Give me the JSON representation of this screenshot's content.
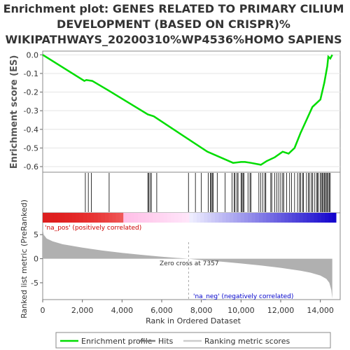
{
  "title_lines": [
    "Enrichment plot: GENES RELATED TO PRIMARY CILIUM",
    "DEVELOPMENT (BASED ON CRISPR)%",
    "WIKIPATHWAYS_20200310%WP4536%HOMO SAPIENS"
  ],
  "colors": {
    "es_line": "#00dd00",
    "hits": "#000000",
    "metric_fill": "#b0b0b0",
    "pos_color": "#cc0000",
    "neg_color": "#0000cc"
  },
  "chart_data": [
    {
      "type": "line",
      "panel": "enrichment-score",
      "ylabel": "Enrichment score (ES)",
      "ylim": [
        -0.63,
        0.02
      ],
      "xlim": [
        0,
        15000
      ],
      "yticks": [
        "0.0",
        "-0.1",
        "-0.2",
        "-0.3",
        "-0.4",
        "-0.5",
        "-0.6"
      ],
      "ytick_values": [
        0.0,
        -0.1,
        -0.2,
        -0.3,
        -0.4,
        -0.5,
        -0.6
      ],
      "grid": true,
      "series": [
        {
          "x": [
            0,
            2100,
            2200,
            2500,
            3300,
            5300,
            5600,
            8300,
            9600,
            10000,
            10200,
            10500,
            11000,
            11300,
            11700,
            12100,
            12400,
            12700,
            13000,
            13300,
            13600,
            14000,
            14200,
            14350,
            14400,
            14500,
            14600
          ],
          "y": [
            0.0,
            -0.14,
            -0.135,
            -0.14,
            -0.19,
            -0.32,
            -0.33,
            -0.52,
            -0.58,
            -0.575,
            -0.575,
            -0.58,
            -0.59,
            -0.57,
            -0.55,
            -0.52,
            -0.53,
            -0.5,
            -0.42,
            -0.35,
            -0.28,
            -0.24,
            -0.15,
            -0.06,
            -0.01,
            -0.02,
            0.0
          ]
        }
      ]
    },
    {
      "type": "bar",
      "panel": "hits",
      "xlim": [
        0,
        15000
      ],
      "hits": [
        2150,
        2300,
        2450,
        3350,
        5300,
        5350,
        5420,
        5480,
        5750,
        7350,
        7700,
        8000,
        8350,
        8450,
        8500,
        8550,
        8600,
        8800,
        9200,
        9550,
        9650,
        9700,
        9800,
        9850,
        10000,
        10050,
        10100,
        10150,
        10350,
        10450,
        10500,
        10900,
        11000,
        11100,
        11200,
        11250,
        11500,
        11550,
        11700,
        11800,
        11900,
        12000,
        12100,
        12150,
        12300,
        12450,
        12550,
        12700,
        12850,
        12950,
        13000,
        13100,
        13150,
        13300,
        13400,
        13450,
        13550,
        13600,
        13700,
        13800,
        13850,
        13900,
        14000,
        14050,
        14100,
        14150,
        14200,
        14250,
        14300,
        14350,
        14400,
        14450,
        14500
      ]
    },
    {
      "type": "area",
      "panel": "ranked-metric",
      "ylabel": "Ranked list metric (PreRanked)",
      "xlabel": "Rank in Ordered Dataset",
      "xlim": [
        0,
        15000
      ],
      "ylim": [
        -8.5,
        7.5
      ],
      "xticks": [
        "0",
        "2,000",
        "4,000",
        "6,000",
        "8,000",
        "10,000",
        "12,000",
        "14,000"
      ],
      "xtick_values": [
        0,
        2000,
        4000,
        6000,
        8000,
        10000,
        12000,
        14000
      ],
      "yticks": [
        "5",
        "0",
        "-5"
      ],
      "ytick_values": [
        5,
        0,
        -5
      ],
      "x": [
        0,
        50,
        200,
        500,
        1000,
        2000,
        3000,
        4000,
        5000,
        6000,
        7000,
        7357,
        8000,
        9000,
        10000,
        11000,
        12000,
        13000,
        13500,
        14000,
        14300,
        14450,
        14550,
        14600
      ],
      "y": [
        6.2,
        5.0,
        4.2,
        3.6,
        3.0,
        2.3,
        1.7,
        1.2,
        0.8,
        0.4,
        0.1,
        0.0,
        -0.3,
        -0.6,
        -1.0,
        -1.4,
        -1.9,
        -2.5,
        -2.9,
        -3.5,
        -4.2,
        -5.0,
        -6.5,
        -8.3
      ],
      "pos_label": "'na_pos' (positively correlated)",
      "neg_label": "'na_neg' (negatively correlated)",
      "zero_cross_label": "Zero cross at 7357",
      "zero_cross": 7357
    }
  ],
  "legend": {
    "items": [
      {
        "label": "Enrichment profile",
        "color": "#00dd00"
      },
      {
        "label": "Hits",
        "color": "#808080"
      },
      {
        "label": "Ranking metric scores",
        "color": "#cccccc"
      }
    ]
  }
}
